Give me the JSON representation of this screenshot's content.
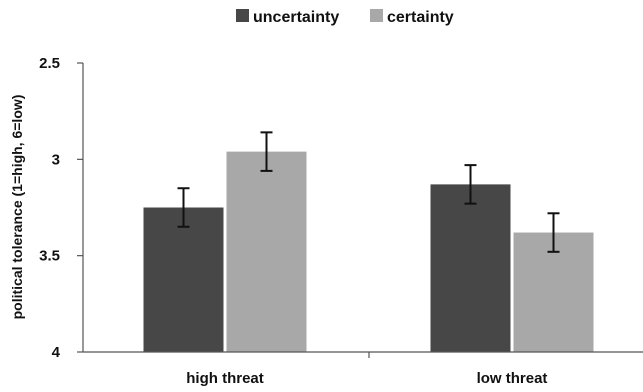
{
  "chart_data": {
    "type": "bar",
    "title": "",
    "xlabel": "",
    "ylabel": "political tolerance (1=high, 6=low)",
    "ylim": [
      2.5,
      4
    ],
    "y_axis_inverted": true,
    "yticks": [
      "2.5",
      "3",
      "3.5",
      "4"
    ],
    "categories": [
      "high threat",
      "low threat"
    ],
    "series": [
      {
        "name": "uncertainty",
        "color": "#474747",
        "values": [
          3.25,
          3.13
        ],
        "error": [
          0.1,
          0.1
        ]
      },
      {
        "name": "certainty",
        "color": "#a8a8a8",
        "values": [
          2.96,
          3.38
        ],
        "error": [
          0.1,
          0.1
        ]
      }
    ],
    "legend": "top-center",
    "grid": false
  }
}
